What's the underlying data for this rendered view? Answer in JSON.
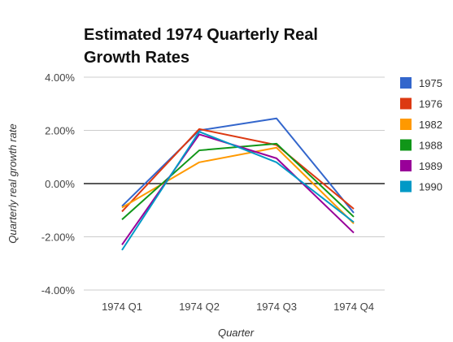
{
  "chart_data": {
    "type": "line",
    "title_lines": [
      "Estimated 1974 Quarterly Real",
      "Growth Rates"
    ],
    "xlabel": "Quarter",
    "ylabel": "Quarterly real growth rate",
    "categories": [
      "1974 Q1",
      "1974 Q2",
      "1974 Q3",
      "1974 Q4"
    ],
    "ylim": [
      -4,
      4
    ],
    "yticks": [
      4,
      2,
      0,
      -2,
      -4
    ],
    "ytick_labels": [
      "4.00%",
      "2.00%",
      "0.00%",
      "-2.00%",
      "-4.00%"
    ],
    "grid": true,
    "zero_line": true,
    "legend_position": "right",
    "series": [
      {
        "name": "1975",
        "color": "#3366cc",
        "values": [
          -0.85,
          2.0,
          2.45,
          -1.1
        ]
      },
      {
        "name": "1976",
        "color": "#dc3912",
        "values": [
          -1.05,
          2.05,
          1.45,
          -0.95
        ]
      },
      {
        "name": "1982",
        "color": "#ff9900",
        "values": [
          -0.9,
          0.8,
          1.35,
          -1.5
        ]
      },
      {
        "name": "1988",
        "color": "#109618",
        "values": [
          -1.35,
          1.25,
          1.5,
          -1.25
        ]
      },
      {
        "name": "1989",
        "color": "#990099",
        "values": [
          -2.3,
          1.85,
          0.95,
          -1.85
        ]
      },
      {
        "name": "1990",
        "color": "#0099c6",
        "values": [
          -2.5,
          1.95,
          0.8,
          -1.45
        ]
      }
    ]
  }
}
